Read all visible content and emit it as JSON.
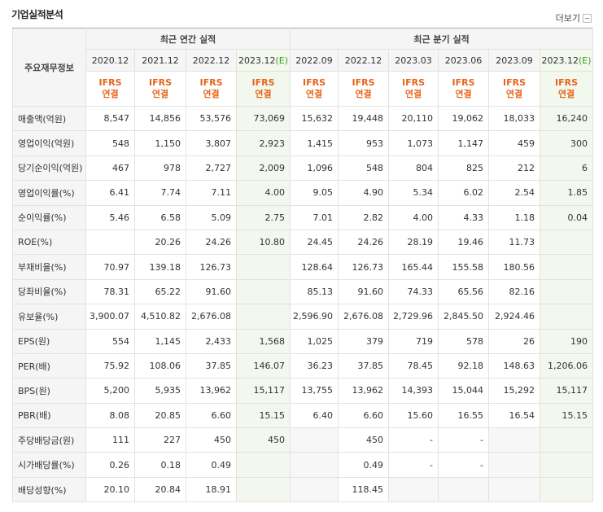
{
  "header": {
    "title": "기업실적분석",
    "more_link": "더보기"
  },
  "table": {
    "corner": "주요재무정보",
    "groups": [
      "최근 연간 실적",
      "최근 분기 실적"
    ],
    "periods": [
      {
        "label": "2020.12"
      },
      {
        "label": "2021.12"
      },
      {
        "label": "2022.12"
      },
      {
        "label": "2023.12",
        "estimate": "(E)"
      },
      {
        "label": "2022.09"
      },
      {
        "label": "2022.12"
      },
      {
        "label": "2023.03"
      },
      {
        "label": "2023.06"
      },
      {
        "label": "2023.09"
      },
      {
        "label": "2023.12",
        "estimate": "(E)"
      }
    ],
    "standards": [
      {
        "line1": "IFRS",
        "line2": "연결"
      },
      {
        "line1": "IFRS",
        "line2": "연결"
      },
      {
        "line1": "IFRS",
        "line2": "연결"
      },
      {
        "line1": "IFRS",
        "line2": "연결"
      },
      {
        "line1": "IFRS",
        "line2": "연결"
      },
      {
        "line1": "IFRS",
        "line2": "연결"
      },
      {
        "line1": "IFRS",
        "line2": "연결"
      },
      {
        "line1": "IFRS",
        "line2": "연결"
      },
      {
        "line1": "IFRS",
        "line2": "연결"
      },
      {
        "line1": "IFRS",
        "line2": "연결"
      }
    ],
    "rows": [
      {
        "label": "매출액(억원)",
        "cells": [
          "8,547",
          "14,856",
          "53,576",
          "73,069",
          "15,632",
          "19,448",
          "20,110",
          "19,062",
          "18,033",
          "16,240"
        ]
      },
      {
        "label": "영업이익(억원)",
        "cells": [
          "548",
          "1,150",
          "3,807",
          "2,923",
          "1,415",
          "953",
          "1,073",
          "1,147",
          "459",
          "300"
        ]
      },
      {
        "label": "당기순이익(억원)",
        "cells": [
          "467",
          "978",
          "2,727",
          "2,009",
          "1,096",
          "548",
          "804",
          "825",
          "212",
          "6"
        ]
      },
      {
        "label": "영업이익률(%)",
        "cells": [
          "6.41",
          "7.74",
          "7.11",
          "4.00",
          "9.05",
          "4.90",
          "5.34",
          "6.02",
          "2.54",
          "1.85"
        ]
      },
      {
        "label": "순이익률(%)",
        "cells": [
          "5.46",
          "6.58",
          "5.09",
          "2.75",
          "7.01",
          "2.82",
          "4.00",
          "4.33",
          "1.18",
          "0.04"
        ]
      },
      {
        "label": "ROE(%)",
        "cells": [
          null,
          "20.26",
          "24.26",
          "10.80",
          "24.45",
          "24.26",
          "28.19",
          "19.46",
          "11.73",
          null
        ]
      },
      {
        "label": "부채비율(%)",
        "cells": [
          "70.97",
          "139.18",
          "126.73",
          null,
          "128.64",
          "126.73",
          "165.44",
          "155.58",
          "180.56",
          null
        ]
      },
      {
        "label": "당좌비율(%)",
        "cells": [
          "78.31",
          "65.22",
          "91.60",
          null,
          "85.13",
          "91.60",
          "74.33",
          "65.56",
          "82.16",
          null
        ]
      },
      {
        "label": "유보율(%)",
        "cells": [
          "3,900.07",
          "4,510.82",
          "2,676.08",
          null,
          "2,596.90",
          "2,676.08",
          "2,729.96",
          "2,845.50",
          "2,924.46",
          null
        ]
      },
      {
        "label": "EPS(원)",
        "cells": [
          "554",
          "1,145",
          "2,433",
          "1,568",
          "1,025",
          "379",
          "719",
          "578",
          "26",
          "190"
        ]
      },
      {
        "label": "PER(배)",
        "cells": [
          "75.92",
          "108.06",
          "37.85",
          "146.07",
          "36.23",
          "37.85",
          "78.45",
          "92.18",
          "148.63",
          "1,206.06"
        ]
      },
      {
        "label": "BPS(원)",
        "cells": [
          "5,200",
          "5,935",
          "13,962",
          "15,117",
          "13,755",
          "13,962",
          "14,393",
          "15,044",
          "15,292",
          "15,117"
        ]
      },
      {
        "label": "PBR(배)",
        "cells": [
          "8.08",
          "20.85",
          "6.60",
          "15.15",
          "6.40",
          "6.60",
          "15.60",
          "16.55",
          "16.54",
          "15.15"
        ]
      },
      {
        "label": "주당배당금(원)",
        "cells": [
          "111",
          "227",
          "450",
          "450",
          null,
          "450",
          "-",
          "-",
          null,
          null
        ]
      },
      {
        "label": "시가배당률(%)",
        "cells": [
          "0.26",
          "0.18",
          "0.49",
          null,
          null,
          "0.49",
          "-",
          "-",
          null,
          null
        ]
      },
      {
        "label": "배당성향(%)",
        "cells": [
          "20.10",
          "20.84",
          "18.91",
          null,
          null,
          "118.45",
          null,
          null,
          null,
          null
        ]
      }
    ]
  }
}
